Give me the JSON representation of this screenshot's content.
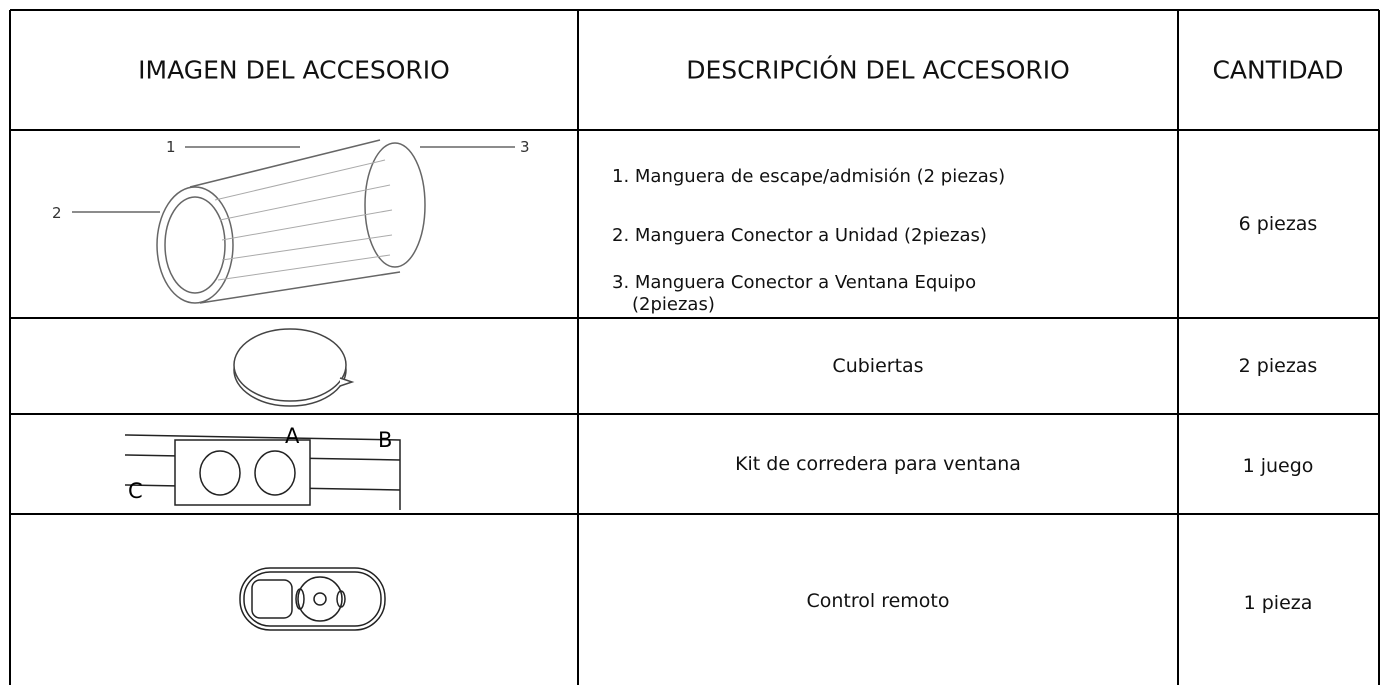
{
  "table": {
    "headers": [
      "IMAGEN DEL ACCESORIO",
      "DESCRIPCIÓN DEL ACCESORIO",
      "CANTIDAD"
    ],
    "rows": [
      {
        "image_labels": [
          "1",
          "2",
          "3"
        ],
        "description": [
          "1. Manguera de escape/admisión (2 piezas)",
          "2. Manguera Conector a Unidad (2piezas)",
          "3. Manguera Conector a Ventana Equipo (2piezas)"
        ],
        "quantity": "6 piezas"
      },
      {
        "description": [
          "Cubiertas"
        ],
        "quantity": "2 piezas"
      },
      {
        "image_labels": [
          "A",
          "B",
          "C"
        ],
        "description": [
          "Kit de corredera para ventana"
        ],
        "quantity": "1 juego"
      },
      {
        "description": [
          "Control remoto"
        ],
        "quantity": "1 pieza"
      }
    ]
  }
}
